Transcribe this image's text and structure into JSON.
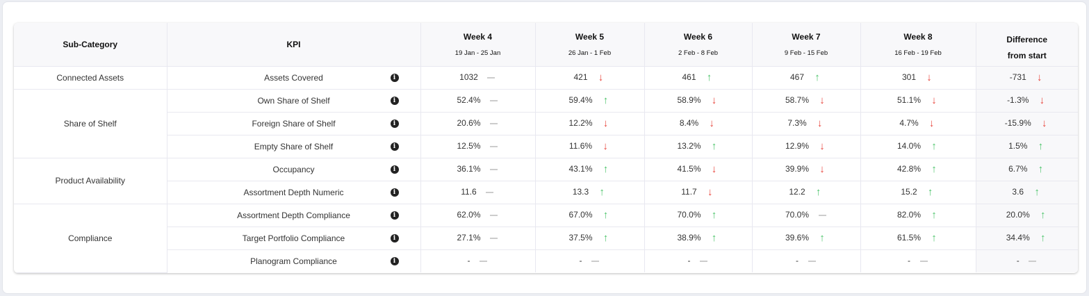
{
  "headers": {
    "subcategory": "Sub-Category",
    "kpi": "KPI",
    "weeks": [
      {
        "label": "Week 4",
        "range": "19 Jan - 25 Jan"
      },
      {
        "label": "Week 5",
        "range": "26 Jan - 1 Feb"
      },
      {
        "label": "Week 6",
        "range": "2 Feb - 8 Feb"
      },
      {
        "label": "Week 7",
        "range": "9 Feb - 15 Feb"
      },
      {
        "label": "Week 8",
        "range": "16 Feb - 19 Feb"
      }
    ],
    "diff_line1": "Difference",
    "diff_line2": "from start"
  },
  "colors": {
    "up": "#4cc46a",
    "down": "#e8453c",
    "flat": "#cccccc"
  },
  "groups": [
    {
      "name": "Connected Assets",
      "rows": [
        {
          "kpi": "Assets Covered",
          "cells": [
            [
              "1032",
              "flat"
            ],
            [
              "421",
              "down"
            ],
            [
              "461",
              "up"
            ],
            [
              "467",
              "up"
            ],
            [
              "301",
              "down"
            ],
            [
              "-731",
              "down"
            ]
          ]
        }
      ]
    },
    {
      "name": "Share of Shelf",
      "rows": [
        {
          "kpi": "Own Share of Shelf",
          "cells": [
            [
              "52.4%",
              "flat"
            ],
            [
              "59.4%",
              "up"
            ],
            [
              "58.9%",
              "down"
            ],
            [
              "58.7%",
              "down"
            ],
            [
              "51.1%",
              "down"
            ],
            [
              "-1.3%",
              "down"
            ]
          ]
        },
        {
          "kpi": "Foreign Share of Shelf",
          "cells": [
            [
              "20.6%",
              "flat"
            ],
            [
              "12.2%",
              "down"
            ],
            [
              "8.4%",
              "down"
            ],
            [
              "7.3%",
              "down"
            ],
            [
              "4.7%",
              "down"
            ],
            [
              "-15.9%",
              "down"
            ]
          ]
        },
        {
          "kpi": "Empty Share of Shelf",
          "cells": [
            [
              "12.5%",
              "flat"
            ],
            [
              "11.6%",
              "down"
            ],
            [
              "13.2%",
              "up"
            ],
            [
              "12.9%",
              "down"
            ],
            [
              "14.0%",
              "up"
            ],
            [
              "1.5%",
              "up"
            ]
          ]
        }
      ]
    },
    {
      "name": "Product Availability",
      "rows": [
        {
          "kpi": "Occupancy",
          "cells": [
            [
              "36.1%",
              "flat"
            ],
            [
              "43.1%",
              "up"
            ],
            [
              "41.5%",
              "down"
            ],
            [
              "39.9%",
              "down"
            ],
            [
              "42.8%",
              "up"
            ],
            [
              "6.7%",
              "up"
            ]
          ]
        },
        {
          "kpi": "Assortment Depth Numeric",
          "cells": [
            [
              "11.6",
              "flat"
            ],
            [
              "13.3",
              "up"
            ],
            [
              "11.7",
              "down"
            ],
            [
              "12.2",
              "up"
            ],
            [
              "15.2",
              "up"
            ],
            [
              "3.6",
              "up"
            ]
          ]
        }
      ]
    },
    {
      "name": "Compliance",
      "rows": [
        {
          "kpi": "Assortment Depth Compliance",
          "cells": [
            [
              "62.0%",
              "flat"
            ],
            [
              "67.0%",
              "up"
            ],
            [
              "70.0%",
              "up"
            ],
            [
              "70.0%",
              "flat"
            ],
            [
              "82.0%",
              "up"
            ],
            [
              "20.0%",
              "up"
            ]
          ]
        },
        {
          "kpi": "Target Portfolio Compliance",
          "cells": [
            [
              "27.1%",
              "flat"
            ],
            [
              "37.5%",
              "up"
            ],
            [
              "38.9%",
              "up"
            ],
            [
              "39.6%",
              "up"
            ],
            [
              "61.5%",
              "up"
            ],
            [
              "34.4%",
              "up"
            ]
          ]
        },
        {
          "kpi": "Planogram Compliance",
          "cells": [
            [
              "-",
              "flat"
            ],
            [
              "-",
              "flat"
            ],
            [
              "-",
              "flat"
            ],
            [
              "-",
              "flat"
            ],
            [
              "-",
              "flat"
            ],
            [
              "-",
              "flat"
            ]
          ]
        }
      ]
    }
  ]
}
